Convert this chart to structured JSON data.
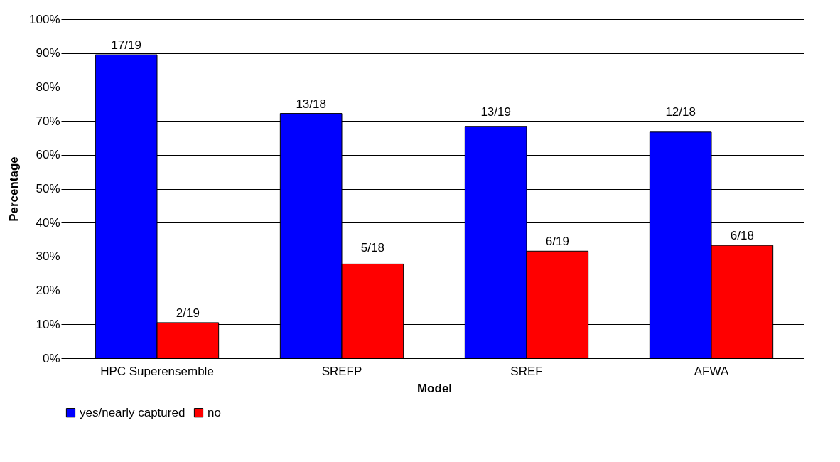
{
  "chart_data": {
    "type": "bar",
    "xlabel": "Model",
    "ylabel": "Percentage",
    "categories": [
      "HPC Superensemble",
      "SREFP",
      "SREF",
      "AFWA"
    ],
    "series": [
      {
        "name": "yes/nearly captured",
        "color": "#0000ff",
        "values": [
          89.5,
          72.2,
          68.4,
          66.7
        ],
        "value_labels": [
          "17/19",
          "13/18",
          "13/19",
          "12/18"
        ]
      },
      {
        "name": "no",
        "color": "#ff0000",
        "values": [
          10.5,
          27.8,
          31.6,
          33.3
        ],
        "value_labels": [
          "2/19",
          "5/18",
          "6/19",
          "6/18"
        ]
      }
    ],
    "ylim": [
      0,
      100
    ],
    "yticks": [
      {
        "value": 0,
        "label": "0%"
      },
      {
        "value": 10,
        "label": "10%"
      },
      {
        "value": 20,
        "label": "20%"
      },
      {
        "value": 30,
        "label": "30%"
      },
      {
        "value": 40,
        "label": "40%"
      },
      {
        "value": 50,
        "label": "50%"
      },
      {
        "value": 60,
        "label": "60%"
      },
      {
        "value": 70,
        "label": "70%"
      },
      {
        "value": 80,
        "label": "80%"
      },
      {
        "value": 90,
        "label": "90%"
      },
      {
        "value": 100,
        "label": "100%"
      }
    ],
    "grid": "y",
    "legend": "bottom"
  }
}
